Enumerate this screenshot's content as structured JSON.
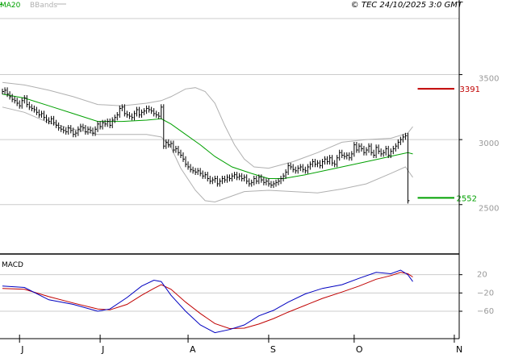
{
  "header": {
    "legend": [
      {
        "label": "MA20",
        "color": "#00a000"
      },
      {
        "label": "BBands",
        "color": "#b0b0b0"
      }
    ],
    "copyright": "© TEC 24/10/2025 3:0 GMT"
  },
  "colors": {
    "ma20": "#00a000",
    "bbands": "#b0b0b0",
    "price": "#000000",
    "resistance": "#c00000",
    "support": "#00a000",
    "macd_line": "#0000c0",
    "signal_line": "#c00000",
    "grid": "#cccccc"
  },
  "chart_data": [
    {
      "type": "ohlc",
      "ylim": [
        2120,
        3950
      ],
      "yticks": [
        2500,
        3000,
        3500
      ],
      "ytick_labels": [
        "2500",
        "3000",
        "3500"
      ],
      "xlim": [
        0,
        188
      ],
      "x_ticks": [
        {
          "x": 8,
          "label": "J"
        },
        {
          "x": 41,
          "label": "J"
        },
        {
          "x": 77,
          "label": "A"
        },
        {
          "x": 110,
          "label": "S"
        },
        {
          "x": 145,
          "label": "O"
        },
        {
          "x": 186,
          "label": "N"
        }
      ],
      "closes": [
        [
          1,
          3370
        ],
        [
          2,
          3380
        ],
        [
          3,
          3350
        ],
        [
          4,
          3330
        ],
        [
          5,
          3310
        ],
        [
          6,
          3300
        ],
        [
          7,
          3280
        ],
        [
          8,
          3260
        ],
        [
          9,
          3300
        ],
        [
          10,
          3320
        ],
        [
          11,
          3270
        ],
        [
          12,
          3250
        ],
        [
          13,
          3240
        ],
        [
          14,
          3230
        ],
        [
          15,
          3210
        ],
        [
          16,
          3190
        ],
        [
          17,
          3200
        ],
        [
          18,
          3170
        ],
        [
          19,
          3150
        ],
        [
          20,
          3140
        ],
        [
          21,
          3160
        ],
        [
          22,
          3130
        ],
        [
          23,
          3110
        ],
        [
          24,
          3090
        ],
        [
          25,
          3080
        ],
        [
          26,
          3070
        ],
        [
          27,
          3060
        ],
        [
          28,
          3090
        ],
        [
          29,
          3070
        ],
        [
          30,
          3040
        ],
        [
          31,
          3050
        ],
        [
          32,
          3080
        ],
        [
          33,
          3100
        ],
        [
          34,
          3090
        ],
        [
          35,
          3060
        ],
        [
          36,
          3080
        ],
        [
          37,
          3070
        ],
        [
          38,
          3050
        ],
        [
          39,
          3080
        ],
        [
          40,
          3120
        ],
        [
          41,
          3100
        ],
        [
          42,
          3130
        ],
        [
          43,
          3120
        ],
        [
          44,
          3140
        ],
        [
          45,
          3110
        ],
        [
          46,
          3150
        ],
        [
          47,
          3170
        ],
        [
          48,
          3190
        ],
        [
          49,
          3240
        ],
        [
          50,
          3250
        ],
        [
          51,
          3200
        ],
        [
          52,
          3190
        ],
        [
          53,
          3180
        ],
        [
          54,
          3170
        ],
        [
          55,
          3200
        ],
        [
          56,
          3230
        ],
        [
          57,
          3190
        ],
        [
          58,
          3210
        ],
        [
          59,
          3220
        ],
        [
          60,
          3240
        ],
        [
          61,
          3230
        ],
        [
          62,
          3220
        ],
        [
          63,
          3200
        ],
        [
          64,
          3190
        ],
        [
          65,
          3180
        ],
        [
          66,
          3250
        ],
        [
          67,
          2950
        ],
        [
          68,
          2980
        ],
        [
          69,
          2960
        ],
        [
          70,
          2970
        ],
        [
          71,
          2920
        ],
        [
          72,
          2930
        ],
        [
          73,
          2900
        ],
        [
          74,
          2880
        ],
        [
          75,
          2850
        ],
        [
          76,
          2810
        ],
        [
          77,
          2790
        ],
        [
          78,
          2770
        ],
        [
          79,
          2760
        ],
        [
          80,
          2750
        ],
        [
          81,
          2760
        ],
        [
          82,
          2740
        ],
        [
          83,
          2720
        ],
        [
          84,
          2730
        ],
        [
          85,
          2700
        ],
        [
          86,
          2680
        ],
        [
          87,
          2690
        ],
        [
          88,
          2700
        ],
        [
          89,
          2660
        ],
        [
          90,
          2680
        ],
        [
          91,
          2700
        ],
        [
          92,
          2690
        ],
        [
          93,
          2710
        ],
        [
          94,
          2700
        ],
        [
          95,
          2720
        ],
        [
          96,
          2730
        ],
        [
          97,
          2710
        ],
        [
          98,
          2720
        ],
        [
          99,
          2700
        ],
        [
          100,
          2710
        ],
        [
          101,
          2680
        ],
        [
          102,
          2660
        ],
        [
          103,
          2670
        ],
        [
          104,
          2700
        ],
        [
          105,
          2680
        ],
        [
          106,
          2710
        ],
        [
          107,
          2690
        ],
        [
          108,
          2670
        ],
        [
          109,
          2680
        ],
        [
          110,
          2660
        ],
        [
          111,
          2650
        ],
        [
          112,
          2660
        ],
        [
          113,
          2670
        ],
        [
          114,
          2680
        ],
        [
          115,
          2700
        ],
        [
          116,
          2720
        ],
        [
          117,
          2750
        ],
        [
          118,
          2800
        ],
        [
          119,
          2790
        ],
        [
          120,
          2770
        ],
        [
          121,
          2760
        ],
        [
          122,
          2780
        ],
        [
          123,
          2790
        ],
        [
          124,
          2770
        ],
        [
          125,
          2760
        ],
        [
          126,
          2790
        ],
        [
          127,
          2810
        ],
        [
          128,
          2830
        ],
        [
          129,
          2810
        ],
        [
          130,
          2820
        ],
        [
          131,
          2800
        ],
        [
          132,
          2830
        ],
        [
          133,
          2850
        ],
        [
          134,
          2830
        ],
        [
          135,
          2860
        ],
        [
          136,
          2820
        ],
        [
          137,
          2810
        ],
        [
          138,
          2860
        ],
        [
          139,
          2900
        ],
        [
          140,
          2880
        ],
        [
          141,
          2870
        ],
        [
          142,
          2880
        ],
        [
          143,
          2860
        ],
        [
          144,
          2890
        ],
        [
          145,
          2960
        ],
        [
          146,
          2920
        ],
        [
          147,
          2950
        ],
        [
          148,
          2930
        ],
        [
          149,
          2900
        ],
        [
          150,
          2920
        ],
        [
          151,
          2950
        ],
        [
          152,
          2900
        ],
        [
          153,
          2880
        ],
        [
          154,
          2940
        ],
        [
          155,
          2910
        ],
        [
          156,
          2890
        ],
        [
          157,
          2900
        ],
        [
          158,
          2930
        ],
        [
          159,
          2880
        ],
        [
          160,
          2910
        ],
        [
          161,
          2930
        ],
        [
          162,
          2950
        ],
        [
          163,
          2980
        ],
        [
          164,
          3000
        ],
        [
          165,
          3020
        ],
        [
          166,
          3030
        ],
        [
          167,
          2530
        ]
      ],
      "ma20": [
        [
          1,
          3350
        ],
        [
          10,
          3320
        ],
        [
          20,
          3260
        ],
        [
          30,
          3200
        ],
        [
          40,
          3140
        ],
        [
          50,
          3140
        ],
        [
          60,
          3150
        ],
        [
          66,
          3160
        ],
        [
          70,
          3120
        ],
        [
          76,
          3040
        ],
        [
          82,
          2960
        ],
        [
          88,
          2870
        ],
        [
          95,
          2790
        ],
        [
          103,
          2740
        ],
        [
          110,
          2700
        ],
        [
          116,
          2700
        ],
        [
          125,
          2730
        ],
        [
          135,
          2770
        ],
        [
          145,
          2810
        ],
        [
          155,
          2850
        ],
        [
          162,
          2880
        ],
        [
          167,
          2900
        ],
        [
          169,
          2890
        ]
      ],
      "bb_upper": [
        [
          1,
          3440
        ],
        [
          10,
          3420
        ],
        [
          20,
          3380
        ],
        [
          30,
          3330
        ],
        [
          40,
          3270
        ],
        [
          50,
          3260
        ],
        [
          60,
          3280
        ],
        [
          66,
          3300
        ],
        [
          70,
          3330
        ],
        [
          76,
          3390
        ],
        [
          80,
          3400
        ],
        [
          84,
          3370
        ],
        [
          88,
          3280
        ],
        [
          92,
          3110
        ],
        [
          96,
          2960
        ],
        [
          100,
          2850
        ],
        [
          104,
          2790
        ],
        [
          110,
          2780
        ],
        [
          120,
          2830
        ],
        [
          130,
          2900
        ],
        [
          140,
          2980
        ],
        [
          150,
          3000
        ],
        [
          160,
          3010
        ],
        [
          167,
          3050
        ],
        [
          169,
          3100
        ]
      ],
      "bb_lower": [
        [
          1,
          3250
        ],
        [
          10,
          3210
        ],
        [
          20,
          3130
        ],
        [
          30,
          3080
        ],
        [
          40,
          3040
        ],
        [
          50,
          3040
        ],
        [
          60,
          3040
        ],
        [
          66,
          3020
        ],
        [
          70,
          2940
        ],
        [
          74,
          2780
        ],
        [
          80,
          2610
        ],
        [
          84,
          2530
        ],
        [
          88,
          2520
        ],
        [
          94,
          2560
        ],
        [
          100,
          2600
        ],
        [
          110,
          2610
        ],
        [
          120,
          2600
        ],
        [
          130,
          2590
        ],
        [
          140,
          2620
        ],
        [
          150,
          2660
        ],
        [
          160,
          2740
        ],
        [
          166,
          2790
        ],
        [
          169,
          2710
        ]
      ],
      "resistance": {
        "value": 3391,
        "label": "3391",
        "x_from": 171,
        "x_to": 186
      },
      "support": {
        "value": 2552,
        "label": "2552",
        "x_from": 171,
        "x_to": 186
      }
    },
    {
      "type": "line",
      "title": "MACD",
      "ylim": [
        -120,
        60
      ],
      "yticks": [
        20,
        -20,
        -60
      ],
      "ytick_labels": [
        "20",
        "−20",
        "−60"
      ],
      "series": [
        {
          "key": "macd",
          "points": [
            [
              1,
              -5
            ],
            [
              10,
              -8
            ],
            [
              20,
              -35
            ],
            [
              30,
              -45
            ],
            [
              40,
              -60
            ],
            [
              45,
              -55
            ],
            [
              52,
              -30
            ],
            [
              58,
              -5
            ],
            [
              63,
              8
            ],
            [
              66,
              5
            ],
            [
              70,
              -25
            ],
            [
              76,
              -60
            ],
            [
              82,
              -90
            ],
            [
              88,
              -107
            ],
            [
              94,
              -100
            ],
            [
              100,
              -90
            ],
            [
              106,
              -70
            ],
            [
              112,
              -58
            ],
            [
              118,
              -40
            ],
            [
              125,
              -22
            ],
            [
              132,
              -10
            ],
            [
              140,
              -2
            ],
            [
              147,
              12
            ],
            [
              154,
              25
            ],
            [
              160,
              22
            ],
            [
              164,
              30
            ],
            [
              167,
              20
            ],
            [
              169,
              5
            ]
          ]
        },
        {
          "key": "signal",
          "points": [
            [
              1,
              -10
            ],
            [
              10,
              -12
            ],
            [
              20,
              -28
            ],
            [
              30,
              -42
            ],
            [
              40,
              -55
            ],
            [
              45,
              -57
            ],
            [
              52,
              -45
            ],
            [
              58,
              -25
            ],
            [
              63,
              -10
            ],
            [
              66,
              -2
            ],
            [
              70,
              -12
            ],
            [
              76,
              -40
            ],
            [
              82,
              -65
            ],
            [
              88,
              -87
            ],
            [
              94,
              -98
            ],
            [
              100,
              -97
            ],
            [
              106,
              -88
            ],
            [
              112,
              -76
            ],
            [
              118,
              -62
            ],
            [
              125,
              -47
            ],
            [
              132,
              -32
            ],
            [
              140,
              -18
            ],
            [
              147,
              -5
            ],
            [
              154,
              10
            ],
            [
              160,
              18
            ],
            [
              164,
              25
            ],
            [
              167,
              22
            ],
            [
              169,
              15
            ]
          ]
        }
      ]
    }
  ]
}
